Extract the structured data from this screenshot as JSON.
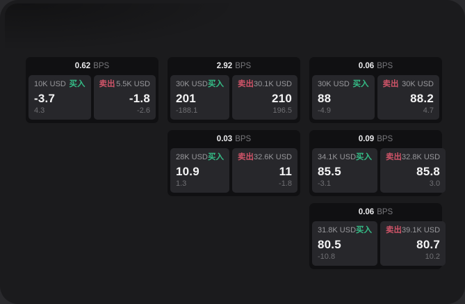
{
  "labels": {
    "bps": "BPS",
    "buy": "买入",
    "sell": "卖出"
  },
  "colors": {
    "background": "#1b1b1d",
    "card": "#101012",
    "panel": "#27272b",
    "buy_green": "#35bd87",
    "sell_red": "#cf5468",
    "text_primary": "#f4f4f5",
    "text_secondary": "#98989c",
    "text_muted": "#707074"
  },
  "cards": [
    {
      "bps": "0.62",
      "buy": {
        "amount": "10K USD",
        "value": "-3.7",
        "sub": "4.3"
      },
      "sell": {
        "amount": "5.5K USD",
        "value": "-1.8",
        "sub": "-2.6"
      }
    },
    {
      "bps": "2.92",
      "buy": {
        "amount": "30K USD",
        "value": "201",
        "sub": "-188.1"
      },
      "sell": {
        "amount": "30.1K USD",
        "value": "210",
        "sub": "196.5"
      }
    },
    {
      "bps": "0.06",
      "buy": {
        "amount": "30K USD",
        "value": "88",
        "sub": "-4.9"
      },
      "sell": {
        "amount": "30K USD",
        "value": "88.2",
        "sub": "4.7"
      }
    },
    {
      "bps": "0.03",
      "buy": {
        "amount": "28K USD",
        "value": "10.9",
        "sub": "1.3"
      },
      "sell": {
        "amount": "32.6K USD",
        "value": "11",
        "sub": "-1.8"
      }
    },
    {
      "bps": "0.09",
      "buy": {
        "amount": "34.1K USD",
        "value": "85.5",
        "sub": "-3.1"
      },
      "sell": {
        "amount": "32.8K USD",
        "value": "85.8",
        "sub": "3.0"
      }
    },
    {
      "bps": "0.06",
      "buy": {
        "amount": "31.8K USD",
        "value": "80.5",
        "sub": "-10.8"
      },
      "sell": {
        "amount": "39.1K USD",
        "value": "80.7",
        "sub": "10.2"
      }
    }
  ]
}
